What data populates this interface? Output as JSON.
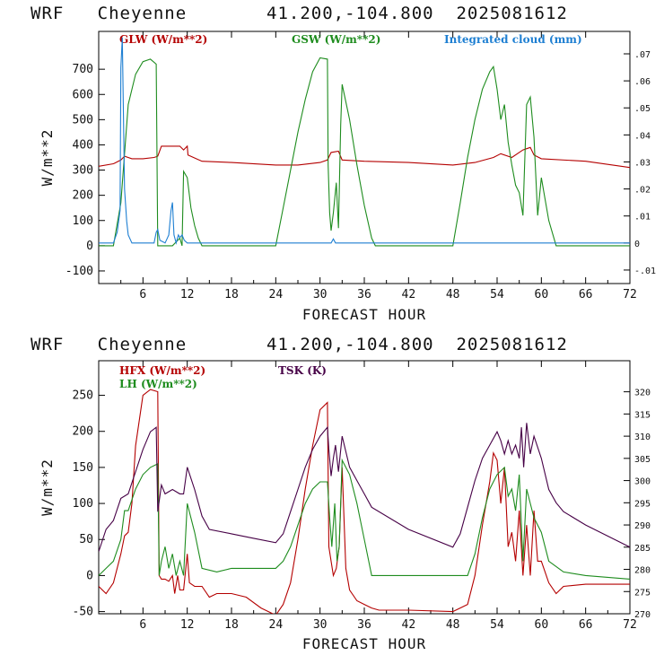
{
  "header": {
    "model": "WRF",
    "station": "Cheyenne",
    "coords": "41.200,-104.800",
    "run": "2025081612"
  },
  "colors": {
    "red": "#b40000",
    "green": "#1e8c1e",
    "blue": "#1e7fd2",
    "purple": "#460046"
  },
  "chart_data": [
    {
      "type": "line",
      "title": "",
      "xlabel": "FORECAST HOUR",
      "ylabel": "W/m**2",
      "xlim": [
        0,
        72
      ],
      "ylim": [
        -150,
        850
      ],
      "xticks": [
        6,
        12,
        18,
        24,
        30,
        36,
        42,
        48,
        54,
        60,
        66,
        72
      ],
      "yticks": [
        -100,
        0,
        100,
        200,
        300,
        400,
        500,
        600,
        700
      ],
      "y2lim": [
        -0.015,
        0.0783
      ],
      "y2ticks": [
        -0.01,
        0,
        0.01,
        0.02,
        0.03,
        0.04,
        0.05,
        0.06,
        0.07
      ],
      "y2ticklabels": [
        "-.01",
        "0",
        ".01",
        ".02",
        ".03",
        ".04",
        ".05",
        ".06",
        ".07"
      ],
      "legend_placement": "top",
      "series": [
        {
          "name": "GLW (W/m**2)",
          "color": "#b40000",
          "axis": "left",
          "x": [
            0,
            2,
            3,
            3.5,
            4.5,
            6,
            7.5,
            8,
            8.5,
            11,
            11.5,
            12,
            12.1,
            14,
            18,
            24,
            27,
            30,
            31,
            31.5,
            32.5,
            33,
            36,
            42,
            48,
            51,
            53.5,
            54.5,
            56,
            57.5,
            58,
            58.5,
            59,
            60,
            66,
            72
          ],
          "y": [
            315,
            325,
            340,
            355,
            345,
            345,
            350,
            355,
            395,
            395,
            380,
            395,
            360,
            335,
            330,
            320,
            320,
            330,
            340,
            370,
            375,
            340,
            335,
            330,
            320,
            330,
            350,
            365,
            350,
            380,
            385,
            390,
            360,
            345,
            335,
            310
          ]
        },
        {
          "name": "GSW (W/m**2)",
          "color": "#1e8c1e",
          "axis": "left",
          "x": [
            0,
            1,
            2,
            3,
            4,
            5,
            6,
            7,
            7.8,
            8,
            8.3,
            9,
            10,
            11,
            11.3,
            11.5,
            12,
            12.5,
            13,
            13.5,
            14,
            24,
            25,
            26,
            27,
            28,
            29,
            30,
            31,
            31.1,
            31.3,
            31.5,
            31.8,
            32.2,
            32.5,
            32.8,
            33,
            34,
            35,
            36,
            37,
            37.5,
            48,
            49,
            50,
            51,
            52,
            53,
            53.5,
            54,
            54.5,
            55,
            55.5,
            56,
            56.5,
            57,
            57.5,
            58,
            58.5,
            59,
            59.5,
            60,
            61,
            62,
            72
          ],
          "y": [
            0,
            0,
            0,
            170,
            560,
            680,
            730,
            740,
            720,
            0,
            0,
            0,
            0,
            30,
            0,
            295,
            270,
            150,
            80,
            30,
            0,
            0,
            150,
            300,
            450,
            580,
            690,
            745,
            740,
            320,
            130,
            60,
            130,
            250,
            70,
            480,
            640,
            500,
            320,
            160,
            30,
            0,
            0,
            170,
            350,
            500,
            620,
            690,
            710,
            620,
            500,
            560,
            410,
            320,
            240,
            210,
            120,
            560,
            590,
            430,
            120,
            270,
            100,
            0,
            0
          ]
        },
        {
          "name": "Integrated cloud (mm)",
          "color": "#1e7fd2",
          "axis": "right",
          "x": [
            0,
            1,
            2,
            2.5,
            2.9,
            3,
            3.2,
            3.5,
            3.8,
            4,
            4.5,
            5,
            7.5,
            7.8,
            8,
            8.3,
            9,
            9.5,
            9.8,
            10,
            10.2,
            10.5,
            10.8,
            11,
            11.3,
            11.6,
            12,
            31.5,
            31.8,
            32.1,
            72
          ],
          "y": [
            0,
            0,
            0,
            0.004,
            0.012,
            0.065,
            0.076,
            0.02,
            0.008,
            0.003,
            0,
            0,
            0,
            0.004,
            0.005,
            0.001,
            0,
            0.003,
            0.012,
            0.015,
            0.003,
            0,
            0.003,
            0.002,
            0.003,
            0.001,
            0,
            0,
            0.0015,
            0,
            0
          ]
        }
      ]
    },
    {
      "type": "line",
      "title": "",
      "xlabel": "FORECAST HOUR",
      "ylabel": "W/m**2",
      "xlim": [
        0,
        72
      ],
      "ylim": [
        -53,
        298
      ],
      "xticks": [
        6,
        12,
        18,
        24,
        30,
        36,
        42,
        48,
        54,
        60,
        66,
        72
      ],
      "yticks": [
        -50,
        0,
        50,
        100,
        150,
        200,
        250
      ],
      "y2lim": [
        270,
        327
      ],
      "y2ticks": [
        270,
        275,
        280,
        285,
        290,
        295,
        300,
        305,
        310,
        315,
        320
      ],
      "legend_placement": "top-left",
      "series": [
        {
          "name": "HFX (W/m**2)",
          "color": "#b40000",
          "axis": "left",
          "x": [
            0,
            1,
            2,
            3,
            3.5,
            4,
            4.5,
            5,
            6,
            7,
            8,
            8.2,
            8.5,
            9,
            9.5,
            10,
            10.3,
            10.7,
            11,
            11.5,
            12,
            12.3,
            13,
            14,
            15,
            16,
            18,
            20,
            22,
            24,
            25,
            26,
            27,
            28,
            29,
            30,
            31,
            31.2,
            31.5,
            31.8,
            32.2,
            32.6,
            33,
            33.5,
            34,
            35,
            36,
            37,
            38,
            42,
            48,
            50,
            51,
            52,
            53,
            53.5,
            54,
            54.5,
            55,
            55.5,
            56,
            56.5,
            57,
            57.5,
            58,
            58.5,
            59,
            59.5,
            60,
            61,
            62,
            63,
            66,
            72
          ],
          "y": [
            -15,
            -25,
            -10,
            30,
            55,
            60,
            100,
            180,
            250,
            258,
            255,
            0,
            -5,
            -5,
            -8,
            0,
            -25,
            0,
            -20,
            -20,
            30,
            -10,
            -15,
            -15,
            -30,
            -25,
            -25,
            -30,
            -45,
            -55,
            -40,
            -10,
            50,
            120,
            180,
            230,
            240,
            40,
            20,
            0,
            10,
            40,
            150,
            10,
            -20,
            -35,
            -40,
            -45,
            -48,
            -48,
            -50,
            -40,
            0,
            70,
            130,
            170,
            160,
            100,
            150,
            40,
            60,
            20,
            90,
            0,
            70,
            0,
            90,
            20,
            20,
            -10,
            -25,
            -15,
            -12,
            -12
          ]
        },
        {
          "name": "LH (W/m**2)",
          "color": "#1e8c1e",
          "axis": "left",
          "x": [
            0,
            1,
            2,
            3,
            3.5,
            4,
            5,
            6,
            7,
            8,
            8.2,
            8.5,
            9,
            9.5,
            10,
            10.5,
            11,
            11.5,
            12,
            13,
            14,
            16,
            18,
            20,
            24,
            25,
            26,
            27,
            28,
            29,
            30,
            31,
            31.3,
            31.6,
            32,
            32.3,
            32.6,
            33,
            34,
            35,
            36,
            37,
            42,
            48,
            50,
            51,
            52,
            53,
            54,
            55,
            55.5,
            56,
            56.5,
            57,
            57.5,
            58,
            59,
            60,
            61,
            63,
            66,
            72
          ],
          "y": [
            0,
            10,
            20,
            50,
            90,
            90,
            120,
            140,
            150,
            155,
            0,
            20,
            40,
            10,
            30,
            0,
            20,
            0,
            100,
            60,
            10,
            5,
            10,
            10,
            10,
            20,
            40,
            70,
            100,
            120,
            130,
            130,
            80,
            40,
            100,
            20,
            40,
            160,
            140,
            100,
            50,
            0,
            0,
            0,
            0,
            30,
            80,
            120,
            140,
            150,
            110,
            120,
            90,
            140,
            20,
            120,
            80,
            60,
            20,
            5,
            0,
            -5
          ]
        },
        {
          "name": "TSK (K)",
          "color": "#460046",
          "axis": "right",
          "x": [
            0,
            1,
            2,
            3,
            4,
            5,
            6,
            7,
            7.8,
            8,
            8.5,
            9,
            10,
            11,
            11.5,
            12,
            13,
            14,
            15,
            18,
            21,
            24,
            25,
            26,
            27,
            28,
            29,
            30,
            31,
            31.2,
            31.5,
            31.8,
            32.1,
            32.5,
            33,
            34,
            35,
            36,
            37,
            42,
            48,
            49,
            50,
            51,
            52,
            53,
            54,
            54.5,
            55,
            55.5,
            56,
            56.5,
            57,
            57.3,
            57.6,
            58,
            58.5,
            59,
            60,
            61,
            62,
            63,
            66,
            72
          ],
          "y": [
            284,
            289,
            291,
            296,
            297,
            302,
            307,
            311,
            312,
            293,
            299,
            297,
            298,
            297,
            297,
            303,
            298,
            292,
            289,
            288,
            287,
            286,
            288,
            293,
            298,
            303,
            307,
            310,
            312,
            307,
            301,
            305,
            308,
            302,
            310,
            303,
            300,
            297,
            294,
            289,
            285,
            288,
            294,
            300,
            305,
            308,
            311,
            309,
            306,
            309,
            306,
            308,
            305,
            312,
            303,
            313,
            306,
            310,
            305,
            298,
            295,
            293,
            290,
            285
          ]
        }
      ]
    }
  ]
}
